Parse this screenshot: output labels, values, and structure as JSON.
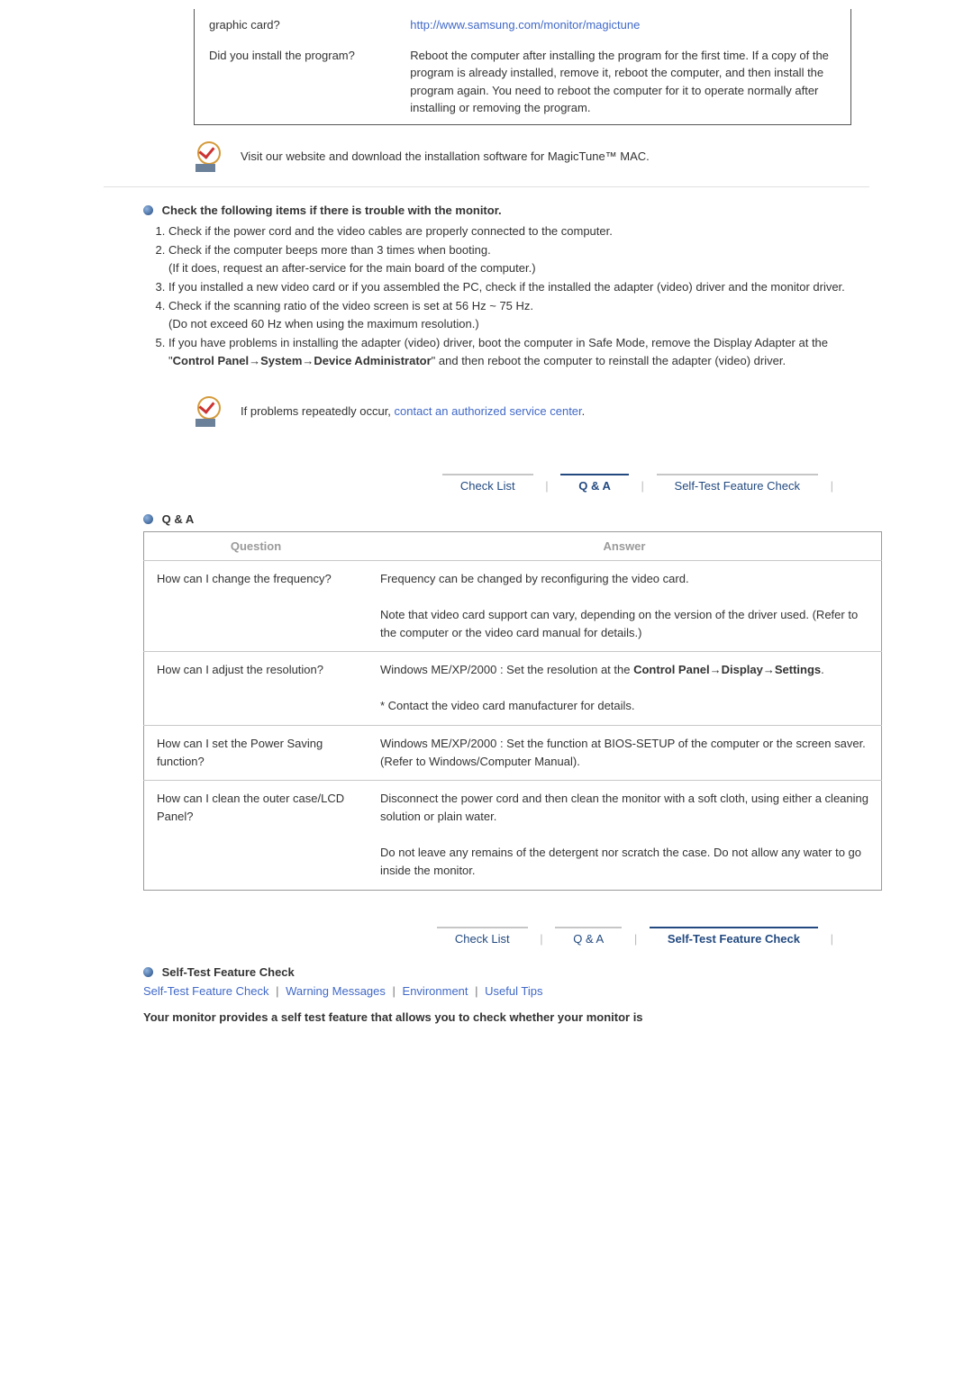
{
  "top_table": {
    "rows": [
      {
        "q": "graphic card?",
        "a_link": "http://www.samsung.com/monitor/magictune"
      },
      {
        "q": "Did you install the program?",
        "a": "Reboot the computer after installing the program for the first time. If a copy of the program is already installed, remove it, reboot the computer, and then install the program again. You need to reboot the computer for it to operate normally after installing or removing the program."
      }
    ]
  },
  "mac_note": "Visit our website and download the installation software for MagicTune™ MAC.",
  "check_heading": "Check the following items if there is trouble with the monitor.",
  "check_list": [
    "Check if the power cord and the video cables are properly connected to the computer.",
    "Check if the computer beeps more than 3 times when booting.\n(If it does, request an after-service for the main board of the computer.)",
    "If you installed a new video card or if you assembled the PC, check if the installed the adapter (video) driver and the monitor driver.",
    "Check if the scanning ratio of the video screen is set at 56 Hz ~ 75 Hz.\n(Do not exceed 60 Hz when using the maximum resolution.)",
    "If you have problems in installing the adapter (video) driver, boot the computer in Safe Mode, remove the Display Adapter at the \"Control Panel→System→Device Administrator\" and then reboot the computer to reinstall the adapter (video) driver."
  ],
  "check_bold_segment": "Control Panel→System→Device Administrator",
  "problems_note_pre": "If problems repeatedly occur, ",
  "problems_note_link": "contact an authorized service center",
  "nav": {
    "check_list": "Check List",
    "qa": "Q & A",
    "self_test": "Self-Test Feature Check"
  },
  "qa": {
    "header_q": "Question",
    "header_a": "Answer",
    "rows": [
      {
        "q": "How can I change the frequency?",
        "a1": "Frequency can be changed by reconfiguring the video card.",
        "a2": "Note that video card support can vary, depending on the version of the driver used. (Refer to the computer or the video card manual for details.)"
      },
      {
        "q": "How can I adjust the resolution?",
        "a1_pre": "Windows ME/XP/2000 : Set the resolution at the ",
        "a1_bold": "Control Panel→Display→Settings",
        "a2": "* Contact the video card manufacturer for details."
      },
      {
        "q": "How can I set the Power Saving function?",
        "a1": "Windows ME/XP/2000 : Set the function at BIOS-SETUP of the computer or the screen saver. (Refer to Windows/Computer Manual)."
      },
      {
        "q": "How can I clean the outer case/LCD Panel?",
        "a1": "Disconnect the power cord and then clean the monitor with a soft cloth, using either a cleaning solution or plain water.",
        "a2": "Do not leave any remains of the detergent nor scratch the case. Do not allow any water to go inside the monitor."
      }
    ]
  },
  "self_test_heading": "Self-Test Feature Check",
  "sub_links": [
    "Self-Test Feature Check",
    "Warning Messages",
    "Environment",
    "Useful Tips"
  ],
  "final_bold": "Your monitor provides a self test feature that allows you to check whether your monitor is"
}
